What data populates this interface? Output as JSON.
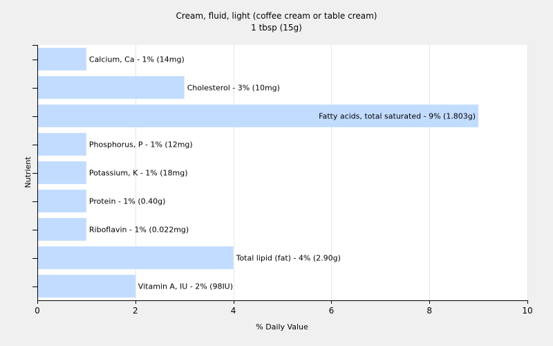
{
  "chart_data": {
    "type": "bar",
    "orientation": "horizontal",
    "title": "Cream, fluid, light (coffee cream or table cream)",
    "subtitle": "1 tbsp (15g)",
    "xlabel": "% Daily Value",
    "ylabel": "Nutrient",
    "xlim": [
      0,
      10
    ],
    "xticks": [
      0,
      2,
      4,
      6,
      8,
      10
    ],
    "grid": true,
    "legend": "none",
    "bar_color": "#c2dcff",
    "categories": [
      "Calcium, Ca",
      "Cholesterol",
      "Fatty acids, total saturated",
      "Phosphorus, P",
      "Potassium, K",
      "Protein",
      "Riboflavin",
      "Total lipid (fat)",
      "Vitamin A, IU"
    ],
    "values": [
      1,
      3,
      9,
      1,
      1,
      1,
      1,
      4,
      2
    ],
    "labels": [
      "Calcium, Ca - 1% (14mg)",
      "Cholesterol - 3% (10mg)",
      "Fatty acids, total saturated - 9% (1.803g)",
      "Phosphorus, P - 1% (12mg)",
      "Potassium, K - 1% (18mg)",
      "Protein - 1% (0.40g)",
      "Riboflavin - 1% (0.022mg)",
      "Total lipid (fat) - 4% (2.90g)",
      "Vitamin A, IU - 2% (98IU)"
    ]
  }
}
